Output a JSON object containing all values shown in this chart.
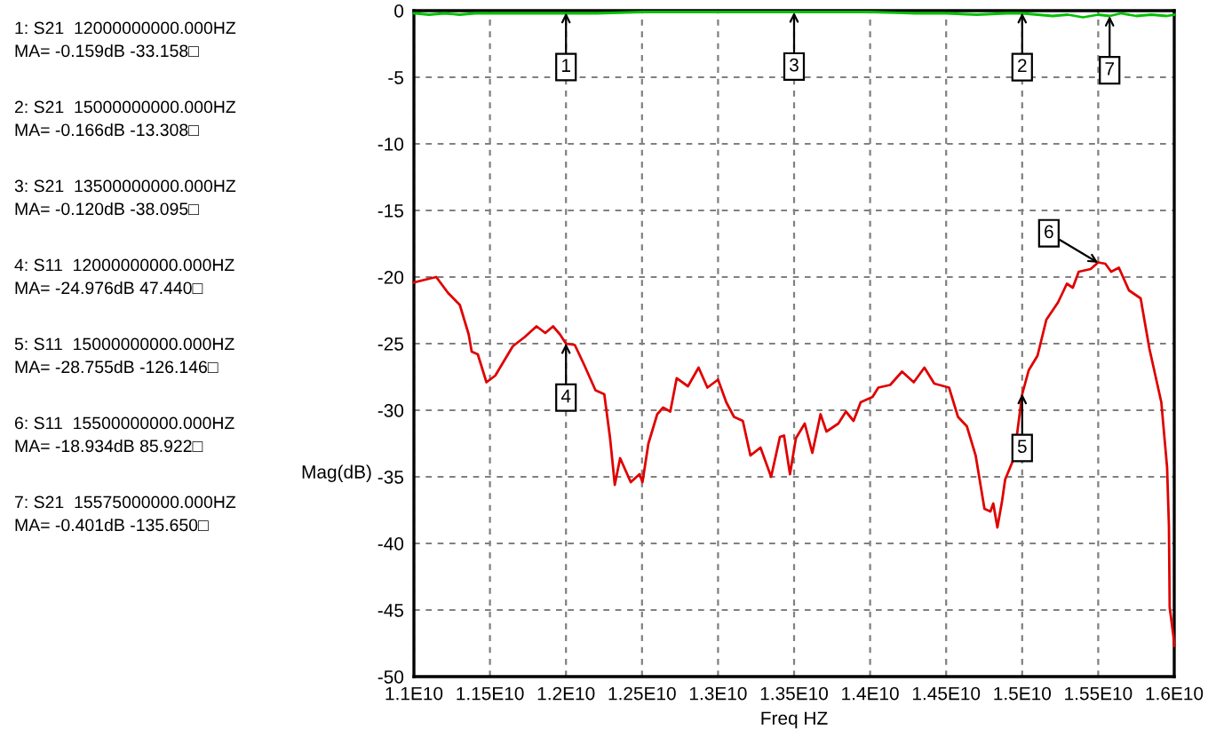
{
  "chart_data": {
    "type": "line",
    "xlabel": "Freq HZ",
    "ylabel": "Mag(dB)",
    "xlim": [
      11000000000,
      16000000000
    ],
    "xticks": [
      {
        "value": 11000000000,
        "label": "1.1E10"
      },
      {
        "value": 11500000000,
        "label": "1.15E10"
      },
      {
        "value": 12000000000,
        "label": "1.2E10"
      },
      {
        "value": 12500000000,
        "label": "1.25E10"
      },
      {
        "value": 13000000000,
        "label": "1.3E10"
      },
      {
        "value": 13500000000,
        "label": "1.35E10"
      },
      {
        "value": 14000000000,
        "label": "1.4E10"
      },
      {
        "value": 14500000000,
        "label": "1.45E10"
      },
      {
        "value": 15000000000,
        "label": "1.5E10"
      },
      {
        "value": 15500000000,
        "label": "1.55E10"
      },
      {
        "value": 16000000000,
        "label": "1.6E10"
      }
    ],
    "ylim": [
      -50,
      0
    ],
    "yticks": [
      0,
      -5,
      -10,
      -15,
      -20,
      -25,
      -30,
      -35,
      -40,
      -45,
      -50
    ],
    "grid": true,
    "line_style": "solid",
    "marker": "none",
    "series": [
      {
        "color": "#00c000",
        "x": [
          11000000000.0,
          11100000000.0,
          11200000000.0,
          11300000000.0,
          11400000000.0,
          11600000000.0,
          11800000000.0,
          12000000000.0,
          12200000000.0,
          12500000000.0,
          12800000000.0,
          13000000000.0,
          13300000000.0,
          13500000000.0,
          13800000000.0,
          14000000000.0,
          14300000000.0,
          14500000000.0,
          14700000000.0,
          14900000000.0,
          15000000000.0,
          15100000000.0,
          15200000000.0,
          15300000000.0,
          15400000000.0,
          15500000000.0,
          15575000000.0,
          15650000000.0,
          15750000000.0,
          15850000000.0,
          15950000000.0,
          16000000000.0
        ],
        "values": [
          -0.2,
          -0.3,
          -0.2,
          -0.3,
          -0.2,
          -0.2,
          -0.2,
          -0.2,
          -0.2,
          -0.1,
          -0.1,
          -0.1,
          -0.1,
          -0.1,
          -0.1,
          -0.1,
          -0.2,
          -0.2,
          -0.3,
          -0.2,
          -0.2,
          -0.3,
          -0.4,
          -0.3,
          -0.5,
          -0.3,
          -0.4,
          -0.2,
          -0.4,
          -0.3,
          -0.4,
          -0.3
        ]
      },
      {
        "color": "#e00000",
        "x": [
          11000000000.0,
          11109000000.0,
          11147000000.0,
          11225000000.0,
          11302000000.0,
          11360000000.0,
          11380000000.0,
          11420000000.0,
          11477000000.0,
          11535000000.0,
          11650000000.0,
          11729000000.0,
          11806000000.0,
          11864000000.0,
          11915000000.0,
          11960000000.0,
          12000000000.0,
          12058000000.0,
          12116000000.0,
          12194000000.0,
          12252000000.0,
          12290000000.0,
          12321000000.0,
          12356000000.0,
          12426000000.0,
          12484000000.0,
          12503000000.0,
          12542000000.0,
          12600000000.0,
          12639000000.0,
          12686000000.0,
          12728000000.0,
          12802000000.0,
          12872000000.0,
          12930000000.0,
          13000000000.0,
          13054000000.0,
          13105000000.0,
          13163000000.0,
          13213000000.0,
          13279000000.0,
          13349000000.0,
          13407000000.0,
          13434000000.0,
          13473000000.0,
          13512000000.0,
          13570000000.0,
          13620000000.0,
          13674000000.0,
          13713000000.0,
          13791000000.0,
          13841000000.0,
          13891000000.0,
          13938000000.0,
          14016000000.0,
          14054000000.0,
          14132000000.0,
          14210000000.0,
          14287000000.0,
          14357000000.0,
          14422000000.0,
          14519000000.0,
          14578000000.0,
          14636000000.0,
          14694000000.0,
          14752000000.0,
          14791000000.0,
          14810000000.0,
          14837000000.0,
          14868000000.0,
          14888000000.0,
          14946000000.0,
          15000000000.0,
          15043000000.0,
          15101000000.0,
          15159000000.0,
          15236000000.0,
          15294000000.0,
          15333000000.0,
          15372000000.0,
          15450000000.0,
          15500000000.0,
          15547000000.0,
          15585000000.0,
          15636000000.0,
          15702000000.0,
          15779000000.0,
          15837000000.0,
          15915000000.0,
          15953000000.0,
          15965000000.0,
          15970000000.0,
          15995000000.0,
          16000000000.0
        ],
        "values": [
          -20.4,
          -20.1,
          -20.0,
          -21.2,
          -22.1,
          -24.3,
          -25.6,
          -25.8,
          -27.9,
          -27.4,
          -25.2,
          -24.5,
          -23.7,
          -24.2,
          -23.7,
          -24.3,
          -25.0,
          -25.1,
          -26.5,
          -28.5,
          -28.8,
          -32.1,
          -35.6,
          -33.6,
          -35.4,
          -34.8,
          -35.4,
          -32.5,
          -30.3,
          -29.8,
          -30.1,
          -27.6,
          -28.2,
          -26.8,
          -28.3,
          -27.7,
          -29.4,
          -30.5,
          -30.8,
          -33.4,
          -32.8,
          -35.0,
          -32.0,
          -31.9,
          -34.8,
          -32.1,
          -31.0,
          -33.2,
          -30.3,
          -31.6,
          -31.0,
          -30.1,
          -30.8,
          -29.4,
          -29.0,
          -28.3,
          -28.1,
          -27.1,
          -27.9,
          -26.8,
          -28.0,
          -28.3,
          -30.5,
          -31.2,
          -33.4,
          -37.4,
          -37.6,
          -37.0,
          -38.8,
          -36.8,
          -35.2,
          -33.6,
          -28.8,
          -27.0,
          -25.9,
          -23.2,
          -21.9,
          -20.5,
          -20.8,
          -19.6,
          -19.4,
          -18.9,
          -19.0,
          -19.6,
          -19.3,
          -21.0,
          -21.6,
          -25.4,
          -29.4,
          -34.3,
          -38.7,
          -44.8,
          -47.0,
          -47.7
        ]
      }
    ],
    "annotations": [
      "1: S21  12000000000.000HZ\nMA= -0.159dB -33.158□",
      "2: S21  15000000000.000HZ\nMA= -0.166dB -13.308□",
      "3: S21  13500000000.000HZ\nMA= -0.120dB -38.095□",
      "4: S11  12000000000.000HZ\nMA= -24.976dB 47.440□",
      "5: S11  15000000000.000HZ\nMA= -28.755dB -126.146□",
      "6: S11  15500000000.000HZ\nMA= -18.934dB 85.922□",
      "7: S21  15575000000.000HZ\nMA= -0.401dB -135.650□",
      {
        "text": "1",
        "x": 12000000000,
        "y": -0.159
      },
      {
        "text": "2",
        "x": 15000000000,
        "y": -0.166
      },
      {
        "text": "3",
        "x": 13500000000,
        "y": -0.12
      },
      {
        "text": "4",
        "x": 12000000000,
        "y": -24.976
      },
      {
        "text": "5",
        "x": 15000000000,
        "y": -28.755
      },
      {
        "text": "6",
        "x": 15500000000,
        "y": -18.934
      },
      {
        "text": "7",
        "x": 15575000000,
        "y": -0.401
      }
    ]
  }
}
